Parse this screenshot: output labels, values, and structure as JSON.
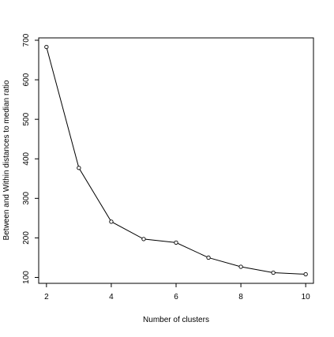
{
  "chart_data": {
    "type": "line",
    "title": "",
    "xlabel": "Number of clusters",
    "ylabel": "Between and Within distances to median ratio",
    "x": [
      2,
      3,
      4,
      5,
      6,
      7,
      8,
      9,
      10
    ],
    "series": [
      {
        "values": [
          683,
          377,
          241,
          197,
          188,
          150,
          127,
          112,
          108
        ]
      }
    ],
    "x_ticks": [
      2,
      4,
      6,
      8,
      10
    ],
    "y_ticks": [
      100,
      200,
      300,
      400,
      500,
      600,
      700
    ],
    "xlim": [
      1.76,
      10.24
    ],
    "ylim": [
      85,
      706
    ],
    "grid": false,
    "marker": "open-circle",
    "line_color": "#000000"
  }
}
